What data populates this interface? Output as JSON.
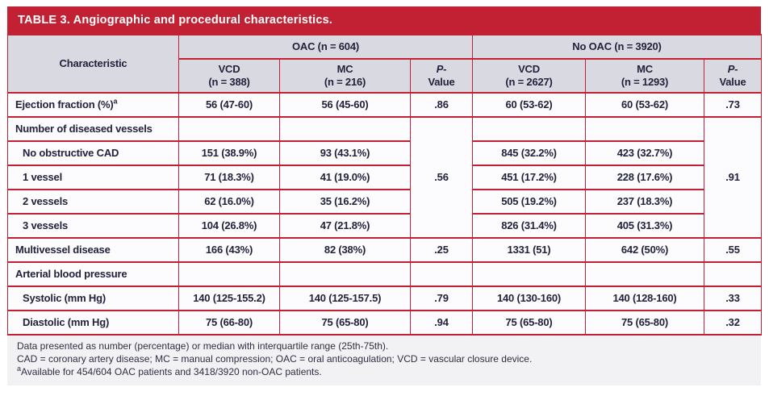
{
  "title": "TABLE 3. Angiographic and procedural characteristics.",
  "header": {
    "characteristic": "Characteristic",
    "oac_group": "OAC (n = 604)",
    "no_oac_group": "No OAC (n = 3920)",
    "cols": [
      {
        "l1": "VCD",
        "l2": "(n = 388)"
      },
      {
        "l1": "MC",
        "l2": "(n = 216)"
      },
      {
        "l1": "P-",
        "l2": "Value"
      },
      {
        "l1": "VCD",
        "l2": "(n = 2627)"
      },
      {
        "l1": "MC",
        "l2": "(n = 1293)"
      },
      {
        "l1": "P-",
        "l2": "Value"
      }
    ]
  },
  "rows": [
    {
      "label": "Ejection fraction (%)",
      "sup": "a",
      "c1": "56 (47-60)",
      "c2": "56 (45-60)",
      "p1": ".86",
      "c3": "60 (53-62)",
      "c4": "60 (53-62)",
      "p2": ".73"
    },
    {
      "label": "Number of diseased vessels",
      "c1": "",
      "c2": "",
      "p1": ".56",
      "c3": "",
      "c4": "",
      "p2": ".91"
    },
    {
      "label": "No obstructive CAD",
      "c1": "151 (38.9%)",
      "c2": "93 (43.1%)",
      "c3": "845 (32.2%)",
      "c4": "423 (32.7%)"
    },
    {
      "label": "1 vessel",
      "c1": "71 (18.3%)",
      "c2": "41 (19.0%)",
      "c3": "451 (17.2%)",
      "c4": "228 (17.6%)"
    },
    {
      "label": "2 vessels",
      "c1": "62 (16.0%)",
      "c2": "35 (16.2%)",
      "c3": "505 (19.2%)",
      "c4": "237 (18.3%)"
    },
    {
      "label": "3 vessels",
      "c1": "104 (26.8%)",
      "c2": "47 (21.8%)",
      "c3": "826 (31.4%)",
      "c4": "405 (31.3%)"
    },
    {
      "label": "Multivessel disease",
      "c1": "166 (43%)",
      "c2": "82 (38%)",
      "p1": ".25",
      "c3": "1331 (51)",
      "c4": "642 (50%)",
      "p2": ".55"
    },
    {
      "label": "Arterial blood pressure",
      "c1": "",
      "c2": "",
      "p1": "",
      "c3": "",
      "c4": "",
      "p2": ""
    },
    {
      "label": "Systolic (mm Hg)",
      "c1": "140 (125-155.2)",
      "c2": "140 (125-157.5)",
      "p1": ".79",
      "c3": "140 (130-160)",
      "c4": "140 (128-160)",
      "p2": ".33"
    },
    {
      "label": "Diastolic (mm Hg)",
      "c1": "75 (66-80)",
      "c2": "75 (65-80)",
      "p1": ".94",
      "c3": "75 (65-80)",
      "c4": "75 (65-80)",
      "p2": ".32"
    }
  ],
  "footnotes": {
    "line1": "Data presented as number (percentage) or median with interquartile range (25th-75th).",
    "line2": "CAD = coronary artery disease; MC = manual compression; OAC = oral anticoagulation; VCD = vascular closure device.",
    "line3_sup": "a",
    "line3": "Available for 454/604 OAC patients and 3418/3920 non-OAC patients."
  },
  "colors": {
    "accent_red": "#c22033",
    "header_bg": "#d9d9e1",
    "body_bg": "#fcfcfe",
    "footnote_bg": "#f2f2f4",
    "text": "#22223c"
  }
}
